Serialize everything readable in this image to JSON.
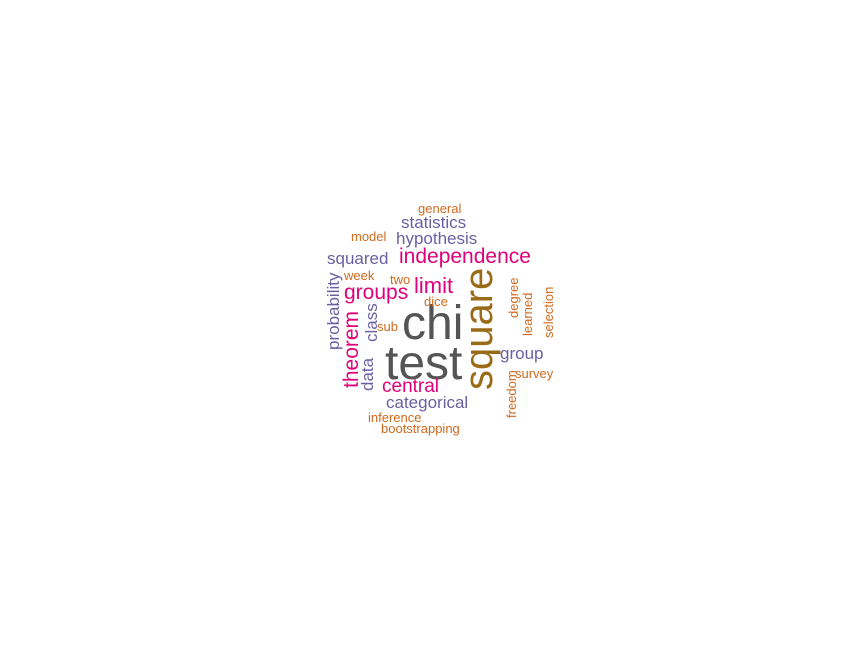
{
  "palette": {
    "large": "#555555",
    "medium_gold": "#9A6B16",
    "pink": "#E0007A",
    "purple": "#6A5FA3",
    "orange": "#D2691E"
  },
  "words": [
    {
      "id": "chi",
      "text": "chi",
      "color": "large",
      "weight": 1.0,
      "rotated": false
    },
    {
      "id": "test",
      "text": "test",
      "color": "large",
      "weight": 1.0,
      "rotated": false
    },
    {
      "id": "square",
      "text": "square",
      "color": "medium_gold",
      "weight": 0.85,
      "rotated": true
    },
    {
      "id": "independence",
      "text": "independence",
      "color": "pink",
      "weight": 0.45,
      "rotated": false
    },
    {
      "id": "limit",
      "text": "limit",
      "color": "pink",
      "weight": 0.5,
      "rotated": false
    },
    {
      "id": "groups",
      "text": "groups",
      "color": "pink",
      "weight": 0.45,
      "rotated": false
    },
    {
      "id": "theorem",
      "text": "theorem",
      "color": "pink",
      "weight": 0.45,
      "rotated": true
    },
    {
      "id": "central",
      "text": "central",
      "color": "pink",
      "weight": 0.45,
      "rotated": false
    },
    {
      "id": "statistics",
      "text": "statistics",
      "color": "purple",
      "weight": 0.35,
      "rotated": false
    },
    {
      "id": "hypothesis",
      "text": "hypothesis",
      "color": "purple",
      "weight": 0.35,
      "rotated": false
    },
    {
      "id": "squared",
      "text": "squared",
      "color": "purple",
      "weight": 0.35,
      "rotated": false
    },
    {
      "id": "probability",
      "text": "probability",
      "color": "purple",
      "weight": 0.35,
      "rotated": true
    },
    {
      "id": "class",
      "text": "class",
      "color": "purple",
      "weight": 0.35,
      "rotated": true
    },
    {
      "id": "data",
      "text": "data",
      "color": "purple",
      "weight": 0.35,
      "rotated": true
    },
    {
      "id": "group",
      "text": "group",
      "color": "purple",
      "weight": 0.35,
      "rotated": false
    },
    {
      "id": "categorical",
      "text": "categorical",
      "color": "purple",
      "weight": 0.35,
      "rotated": false
    },
    {
      "id": "general",
      "text": "general",
      "color": "orange",
      "weight": 0.2,
      "rotated": false
    },
    {
      "id": "model",
      "text": "model",
      "color": "orange",
      "weight": 0.2,
      "rotated": false
    },
    {
      "id": "week",
      "text": "week",
      "color": "orange",
      "weight": 0.2,
      "rotated": false
    },
    {
      "id": "two",
      "text": "two",
      "color": "orange",
      "weight": 0.2,
      "rotated": false
    },
    {
      "id": "dice",
      "text": "dice",
      "color": "orange",
      "weight": 0.2,
      "rotated": false
    },
    {
      "id": "sub",
      "text": "sub",
      "color": "orange",
      "weight": 0.2,
      "rotated": false
    },
    {
      "id": "degree",
      "text": "degree",
      "color": "orange",
      "weight": 0.2,
      "rotated": true
    },
    {
      "id": "learned",
      "text": "learned",
      "color": "orange",
      "weight": 0.2,
      "rotated": true
    },
    {
      "id": "selection",
      "text": "selection",
      "color": "orange",
      "weight": 0.2,
      "rotated": true
    },
    {
      "id": "survey",
      "text": "survey",
      "color": "orange",
      "weight": 0.2,
      "rotated": false
    },
    {
      "id": "freedom",
      "text": "freedom",
      "color": "orange",
      "weight": 0.2,
      "rotated": true
    },
    {
      "id": "inference",
      "text": "inference",
      "color": "orange",
      "weight": 0.2,
      "rotated": false
    },
    {
      "id": "bootstrapping",
      "text": "bootstrapping",
      "color": "orange",
      "weight": 0.2,
      "rotated": false
    }
  ]
}
